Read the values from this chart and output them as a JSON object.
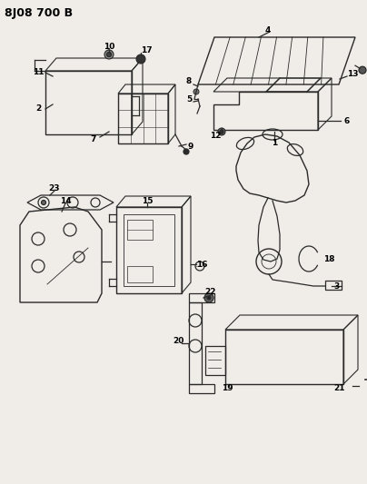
{
  "title": "8J08 700 B",
  "bg": "#f0ede8",
  "lc": "#2a2a2a",
  "tc": "#000000",
  "fig_width": 4.04,
  "fig_height": 5.33,
  "dpi": 100
}
